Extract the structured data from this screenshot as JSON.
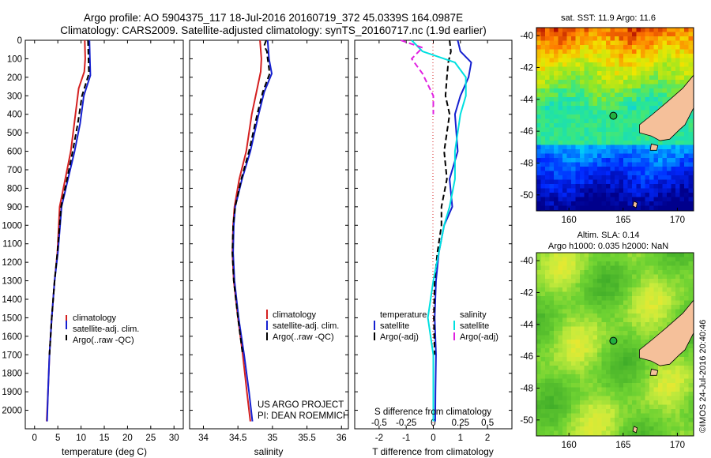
{
  "header": {
    "title": "Argo profile: AO 5904375_117 18-Jul-2016 20160719_372 45.0339S 164.0987E",
    "subtitle": "Climatology: CARS2009. Satellite-adjusted climatology: synTS_20160717.nc (1.9d earlier)"
  },
  "credits": {
    "project": "US ARGO PROJECT",
    "pi": "PI: DEAN ROEMMICH",
    "stamp": "©IMOS 24-Jul-2016 20:40:46"
  },
  "colors": {
    "climatology": "#d42020",
    "satellite": "#1520d0",
    "argo": "#000000",
    "s_satellite": "#00e0e0",
    "s_argo": "#e020e0",
    "land": "#f5c09a"
  },
  "chart_data": [
    {
      "type": "line",
      "id": "temperature",
      "xlabel": "temperature (deg C)",
      "ylabel": "",
      "xlim": [
        -2,
        32
      ],
      "ylim": [
        2100,
        0
      ],
      "xticks": [
        "0",
        "5",
        "10",
        "15",
        "20",
        "25",
        "30"
      ],
      "yticks": [
        "0",
        "100",
        "200",
        "300",
        "400",
        "500",
        "600",
        "700",
        "800",
        "900",
        "1000",
        "1100",
        "1200",
        "1300",
        "1400",
        "1500",
        "1600",
        "1700",
        "1800",
        "1900",
        "2000"
      ],
      "legend_position": "lower-middle",
      "series": [
        {
          "name": "climatology",
          "color": "#d42020",
          "style": "solid",
          "points": [
            [
              10.8,
              0
            ],
            [
              10.9,
              100
            ],
            [
              10.7,
              170
            ],
            [
              9.5,
              260
            ],
            [
              8.8,
              400
            ],
            [
              7.8,
              600
            ],
            [
              6.6,
              750
            ],
            [
              5.4,
              900
            ],
            [
              5.2,
              1000
            ],
            [
              4.9,
              1150
            ],
            [
              4.3,
              1300
            ],
            [
              3.7,
              1500
            ],
            [
              3.2,
              1700
            ],
            [
              2.9,
              1900
            ],
            [
              2.6,
              2060
            ]
          ]
        },
        {
          "name": "satellite-adj. clim.",
          "color": "#1520d0",
          "style": "solid",
          "points": [
            [
              11.8,
              0
            ],
            [
              11.9,
              100
            ],
            [
              12.0,
              190
            ],
            [
              10.6,
              300
            ],
            [
              9.8,
              450
            ],
            [
              8.6,
              600
            ],
            [
              7.2,
              750
            ],
            [
              5.8,
              900
            ],
            [
              5.5,
              1000
            ],
            [
              5.0,
              1150
            ],
            [
              4.3,
              1300
            ],
            [
              3.7,
              1500
            ],
            [
              3.2,
              1700
            ],
            [
              2.9,
              1900
            ],
            [
              2.7,
              2060
            ]
          ]
        },
        {
          "name": "Argo(..raw -QC)",
          "color": "#000000",
          "style": "dashed",
          "points": [
            [
              11.5,
              0
            ],
            [
              11.6,
              100
            ],
            [
              11.7,
              180
            ],
            [
              10.2,
              300
            ],
            [
              9.3,
              450
            ],
            [
              8.2,
              600
            ],
            [
              7.0,
              750
            ],
            [
              5.7,
              900
            ],
            [
              5.4,
              1000
            ],
            [
              4.9,
              1150
            ],
            [
              4.3,
              1300
            ],
            [
              3.7,
              1500
            ],
            [
              3.2,
              1700
            ]
          ]
        }
      ]
    },
    {
      "type": "line",
      "id": "salinity",
      "xlabel": "salinity",
      "ylabel": "",
      "xlim": [
        33.8,
        36.1
      ],
      "ylim": [
        2100,
        0
      ],
      "xticks": [
        "34",
        "34.5",
        "35",
        "35.5",
        "36"
      ],
      "legend_position": "lower-middle",
      "series": [
        {
          "name": "climatology",
          "color": "#d42020",
          "style": "solid",
          "points": [
            [
              34.82,
              0
            ],
            [
              34.84,
              100
            ],
            [
              34.83,
              170
            ],
            [
              34.78,
              260
            ],
            [
              34.7,
              400
            ],
            [
              34.62,
              600
            ],
            [
              34.52,
              750
            ],
            [
              34.45,
              900
            ],
            [
              34.43,
              1000
            ],
            [
              34.42,
              1150
            ],
            [
              34.44,
              1300
            ],
            [
              34.5,
              1500
            ],
            [
              34.57,
              1700
            ],
            [
              34.63,
              1900
            ],
            [
              34.68,
              2060
            ]
          ]
        },
        {
          "name": "satellite-adj. clim.",
          "color": "#1520d0",
          "style": "solid",
          "points": [
            [
              34.93,
              0
            ],
            [
              34.95,
              100
            ],
            [
              34.99,
              180
            ],
            [
              34.88,
              280
            ],
            [
              34.8,
              400
            ],
            [
              34.68,
              600
            ],
            [
              34.56,
              750
            ],
            [
              34.46,
              900
            ],
            [
              34.44,
              1000
            ],
            [
              34.43,
              1150
            ],
            [
              34.45,
              1300
            ],
            [
              34.51,
              1500
            ],
            [
              34.59,
              1700
            ],
            [
              34.66,
              1900
            ],
            [
              34.71,
              2060
            ]
          ]
        },
        {
          "name": "Argo(..raw -QC)",
          "color": "#000000",
          "style": "dashed",
          "points": [
            [
              34.91,
              0
            ],
            [
              34.88,
              30
            ],
            [
              34.92,
              60
            ],
            [
              34.93,
              100
            ],
            [
              34.96,
              180
            ],
            [
              34.86,
              280
            ],
            [
              34.78,
              400
            ],
            [
              34.66,
              600
            ],
            [
              34.55,
              750
            ],
            [
              34.46,
              900
            ],
            [
              34.43,
              1000
            ],
            [
              34.42,
              1150
            ],
            [
              34.44,
              1300
            ],
            [
              34.5,
              1500
            ],
            [
              34.57,
              1700
            ]
          ]
        }
      ]
    },
    {
      "type": "line",
      "id": "difference",
      "xlabel": "T difference from climatology",
      "xlabel_top": "S difference from climatology",
      "xlim": [
        -2.9,
        2.9
      ],
      "ylim": [
        2100,
        0
      ],
      "xticks": [
        "-2",
        "-1",
        "0",
        "1",
        "2"
      ],
      "xticks_top": [
        "-0.5",
        "-0.25",
        "0",
        "0.25",
        "0.5"
      ],
      "legend_position": "lower-middle",
      "legend_headers": [
        "temperature",
        "salinity"
      ],
      "series": [
        {
          "name": "satellite",
          "group": "temperature",
          "color": "#1520d0",
          "style": "solid",
          "points": [
            [
              0.9,
              0
            ],
            [
              1.0,
              60
            ],
            [
              1.4,
              120
            ],
            [
              1.3,
              200
            ],
            [
              1.0,
              300
            ],
            [
              0.8,
              400
            ],
            [
              0.9,
              600
            ],
            [
              0.6,
              750
            ],
            [
              0.7,
              900
            ],
            [
              0.4,
              1000
            ],
            [
              0.2,
              1150
            ],
            [
              0.1,
              1300
            ],
            [
              0.05,
              1500
            ],
            [
              0.1,
              1700
            ],
            [
              0.08,
              1900
            ],
            [
              0.07,
              2060
            ]
          ]
        },
        {
          "name": "Argo(-adj)",
          "group": "temperature",
          "color": "#000000",
          "style": "dashed",
          "points": [
            [
              0.6,
              0
            ],
            [
              0.65,
              60
            ],
            [
              0.55,
              120
            ],
            [
              0.5,
              200
            ],
            [
              0.45,
              300
            ],
            [
              0.6,
              400
            ],
            [
              0.4,
              600
            ],
            [
              0.5,
              750
            ],
            [
              0.3,
              900
            ],
            [
              0.3,
              1000
            ],
            [
              0.15,
              1150
            ],
            [
              0.05,
              1300
            ],
            [
              0.02,
              1500
            ],
            [
              0.05,
              1700
            ]
          ]
        },
        {
          "name": "satellite",
          "group": "salinity",
          "color": "#00e0e0",
          "style": "solid",
          "points": [
            [
              -0.2,
              0
            ],
            [
              -0.1,
              60
            ],
            [
              0.2,
              120
            ],
            [
              0.3,
              200
            ],
            [
              0.3,
              300
            ],
            [
              0.25,
              400
            ],
            [
              0.2,
              600
            ],
            [
              0.2,
              750
            ],
            [
              0.15,
              900
            ],
            [
              0.1,
              1000
            ],
            [
              0.05,
              1150
            ],
            [
              0.0,
              1300
            ],
            [
              -0.05,
              1500
            ],
            [
              0.0,
              1700
            ],
            [
              0.0,
              1900
            ],
            [
              0.0,
              2060
            ]
          ]
        },
        {
          "name": "Argo(-adj)",
          "group": "salinity",
          "color": "#e020e0",
          "style": "dashed",
          "points": [
            [
              -0.3,
              0
            ],
            [
              -0.1,
              40
            ],
            [
              -0.2,
              100
            ],
            [
              -0.1,
              180
            ],
            [
              0.0,
              300
            ],
            [
              0.0,
              400
            ]
          ]
        }
      ]
    },
    {
      "type": "heatmap",
      "id": "sst-map",
      "title": "sat. SST: 11.9 Argo: 11.6",
      "xlim": [
        157,
        171.5
      ],
      "ylim": [
        -51,
        -39.5
      ],
      "xticks": [
        "160",
        "165",
        "170"
      ],
      "yticks": [
        "-40",
        "-42",
        "-44",
        "-46",
        "-48",
        "-50"
      ],
      "float_position": [
        164.1,
        -45.03
      ]
    },
    {
      "type": "heatmap",
      "id": "sla-map",
      "title": "Altim. SLA: 0.14",
      "subtitle": "Argo h1000: 0.035 h2000: NaN",
      "xlim": [
        157,
        171.5
      ],
      "ylim": [
        -51,
        -39.5
      ],
      "xticks": [
        "160",
        "165",
        "170"
      ],
      "yticks": [
        "-40",
        "-42",
        "-44",
        "-46",
        "-48",
        "-50"
      ],
      "float_position": [
        164.1,
        -45.03
      ]
    }
  ]
}
